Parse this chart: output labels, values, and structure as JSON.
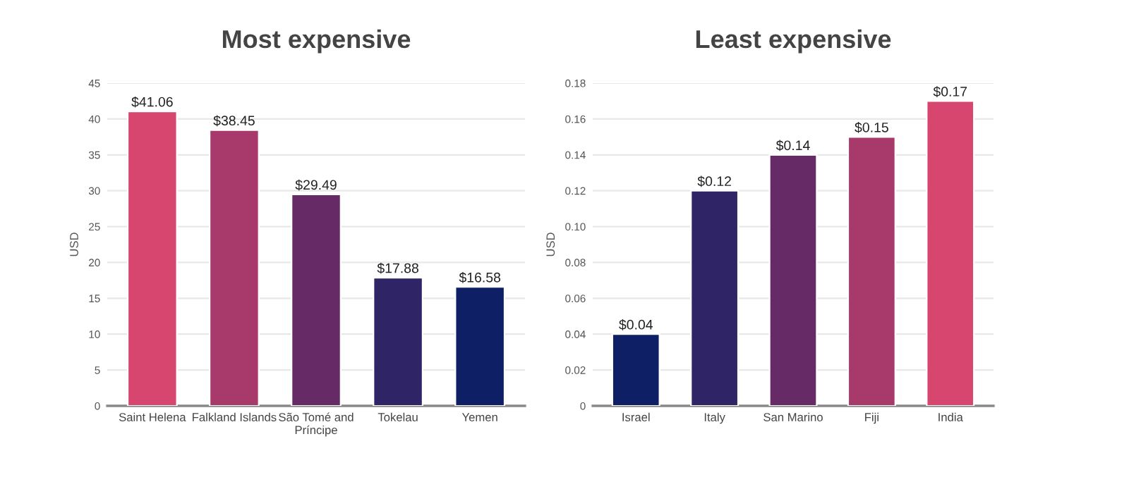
{
  "chart_data": [
    {
      "type": "bar",
      "title": "Most expensive",
      "ylabel": "USD",
      "categories": [
        "Saint Helena",
        "Falkland Islands",
        "São Tomé and\nPríncipe",
        "Tokelau",
        "Yemen"
      ],
      "values": [
        41.06,
        38.45,
        29.49,
        17.88,
        16.58
      ],
      "colors": [
        "#d6466f",
        "#a83a6b",
        "#662b66",
        "#2e2466",
        "#0f1f66"
      ],
      "value_labels": [
        "$41.06",
        "$38.45",
        "$29.49",
        "$17.88",
        "$16.58"
      ],
      "ylim": [
        0,
        45
      ],
      "yticks": [
        0,
        5,
        10,
        15,
        20,
        25,
        30,
        35,
        40,
        45
      ],
      "grid": "y",
      "legend": false
    },
    {
      "type": "bar",
      "title": "Least expensive",
      "ylabel": "USD",
      "categories": [
        "Israel",
        "Italy",
        "San Marino",
        "Fiji",
        "India"
      ],
      "values": [
        0.04,
        0.12,
        0.14,
        0.15,
        0.17
      ],
      "colors": [
        "#0f1f66",
        "#2e2466",
        "#662b66",
        "#a83a6b",
        "#d6466f"
      ],
      "value_labels": [
        "$0.04",
        "$0.12",
        "$0.14",
        "$0.15",
        "$0.17"
      ],
      "ylim": [
        0,
        0.18
      ],
      "yticks": [
        0,
        0.02,
        0.04,
        0.06,
        0.08,
        {
          "value": 0.1,
          "label": "0.10"
        },
        0.12,
        0.14,
        0.16,
        0.18
      ],
      "grid": "y",
      "legend": false
    }
  ]
}
